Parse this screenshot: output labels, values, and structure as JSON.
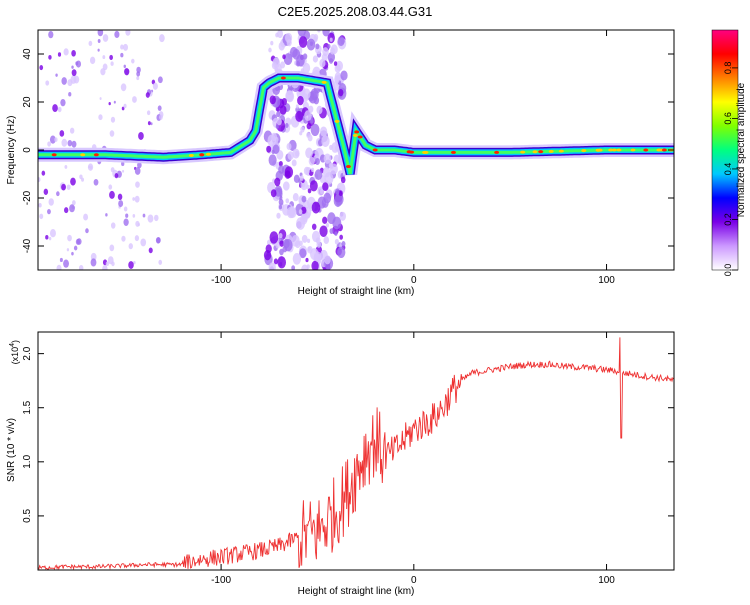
{
  "figure_title": "C2E5.2025.208.03.44.G31",
  "chart_data": [
    {
      "type": "heatmap",
      "title": "C2E5.2025.208.03.44.G31",
      "xlabel": "Height of straight line (km)",
      "ylabel": "Frequency (Hz)",
      "xlim": [
        -195,
        135
      ],
      "ylim": [
        -50,
        50
      ],
      "x_ticks": [
        -100,
        0,
        100
      ],
      "x_tick_labels": [
        "-100",
        "0",
        "100"
      ],
      "y_ticks": [
        40,
        20,
        0,
        -20,
        -40
      ],
      "y_tick_labels": [
        "40",
        "20",
        "0",
        "-20",
        "-40"
      ],
      "colorbar": {
        "label": "Normalized spectral amplitude",
        "range": [
          0.0,
          0.95
        ],
        "ticks": [
          0.0,
          0.2,
          0.4,
          0.6,
          0.8
        ],
        "tick_labels": [
          "0.0",
          "0.2",
          "0.4",
          "0.6",
          "0.8"
        ],
        "colormap": [
          "#ffffff",
          "#cc99ff",
          "#7a00e6",
          "#0000ff",
          "#00c8ff",
          "#00ff80",
          "#80ff00",
          "#ffff00",
          "#ff8000",
          "#ff0000",
          "#ff0080"
        ]
      },
      "ridge": {
        "description_points_x": [
          -195,
          -160,
          -130,
          -110,
          -95,
          -85,
          -82,
          -78,
          -75,
          -70,
          -60,
          -45,
          -36,
          -33,
          -30,
          -25,
          -20,
          -10,
          0,
          20,
          50,
          100,
          135
        ],
        "description_points_y": [
          -2,
          -2,
          -3,
          -2,
          -1,
          4,
          8,
          26,
          28,
          30,
          30,
          28,
          0,
          -10,
          8,
          2,
          0,
          0,
          -1,
          -1,
          -1,
          0,
          0
        ]
      },
      "noise_bands": [
        {
          "x_range": [
            -195,
            -130
          ],
          "density": "scattered"
        },
        {
          "x_range": [
            -76,
            -36
          ],
          "density": "dense"
        }
      ]
    },
    {
      "type": "line",
      "xlabel": "Height of straight line (km)",
      "ylabel": "SNR (10 * v/v)",
      "y_multiplier_label": "(x10",
      "y_multiplier_exp": "4",
      "y_multiplier_close": ")",
      "xlim": [
        -195,
        135
      ],
      "ylim": [
        0,
        2.2
      ],
      "x_ticks": [
        -100,
        0,
        100
      ],
      "x_tick_labels": [
        "-100",
        "0",
        "100"
      ],
      "y_ticks": [
        0.5,
        1.0,
        1.5,
        2.0
      ],
      "y_tick_labels": [
        "0.5",
        "1.0",
        "1.5",
        "2.0"
      ],
      "line_color": "#ee3030",
      "series": [
        {
          "x": [
            -195,
            -180,
            -165,
            -150,
            -140,
            -130,
            -120,
            -115,
            -110,
            -100,
            -90,
            -80,
            -70,
            -60,
            -50,
            -45,
            -40,
            -35,
            -30,
            -25,
            -20,
            -15,
            -10,
            -5,
            0,
            5,
            10,
            15,
            20,
            25,
            30,
            40,
            50,
            60,
            70,
            80,
            90,
            100,
            105,
            107,
            110,
            120,
            130,
            135
          ],
          "y": [
            0.02,
            0.03,
            0.03,
            0.04,
            0.05,
            0.05,
            0.05,
            0.08,
            0.1,
            0.12,
            0.15,
            0.18,
            0.22,
            0.3,
            0.35,
            0.45,
            0.55,
            0.7,
            0.9,
            1.1,
            1.2,
            1.05,
            1.1,
            1.2,
            1.3,
            1.35,
            1.4,
            1.5,
            1.65,
            1.75,
            1.82,
            1.85,
            1.88,
            1.9,
            1.9,
            1.88,
            1.87,
            1.85,
            1.84,
            1.8,
            1.82,
            1.79,
            1.77,
            1.75
          ]
        }
      ],
      "spike": {
        "x": 107,
        "y_min": 1.22,
        "y_max": 2.15
      },
      "noise_amplitude": [
        {
          "x_range": [
            -195,
            -120
          ],
          "amp": 0.02
        },
        {
          "x_range": [
            -120,
            -60
          ],
          "amp": 0.08
        },
        {
          "x_range": [
            -60,
            -15
          ],
          "amp": 0.35
        },
        {
          "x_range": [
            -15,
            25
          ],
          "amp": 0.15
        },
        {
          "x_range": [
            25,
            135
          ],
          "amp": 0.03
        }
      ]
    }
  ]
}
